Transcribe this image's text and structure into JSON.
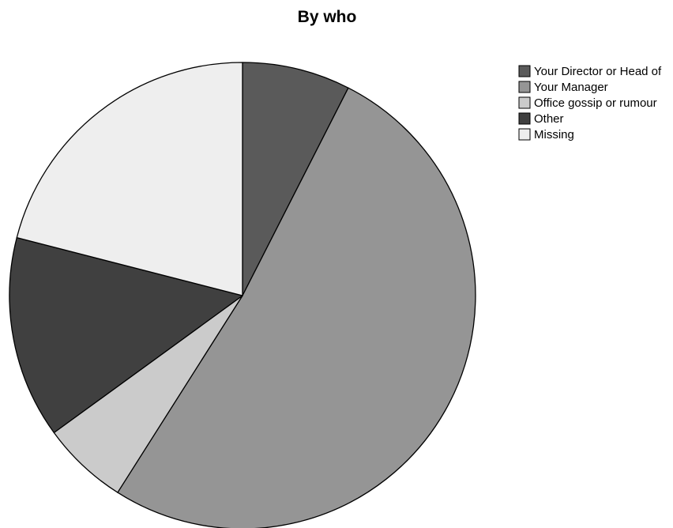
{
  "chart_data": {
    "type": "pie",
    "title": "By who",
    "legend_position": "top-right",
    "slices": [
      {
        "label": "Your Director or Head of",
        "value": 7.5,
        "color": "#5a5a5a"
      },
      {
        "label": "Your Manager",
        "value": 51.5,
        "color": "#959595"
      },
      {
        "label": "Office gossip or rumour",
        "value": 6.0,
        "color": "#cbcbcb"
      },
      {
        "label": "Other",
        "value": 14.0,
        "color": "#404040"
      },
      {
        "label": "Missing",
        "value": 21.0,
        "color": "#eeeeee"
      }
    ]
  }
}
